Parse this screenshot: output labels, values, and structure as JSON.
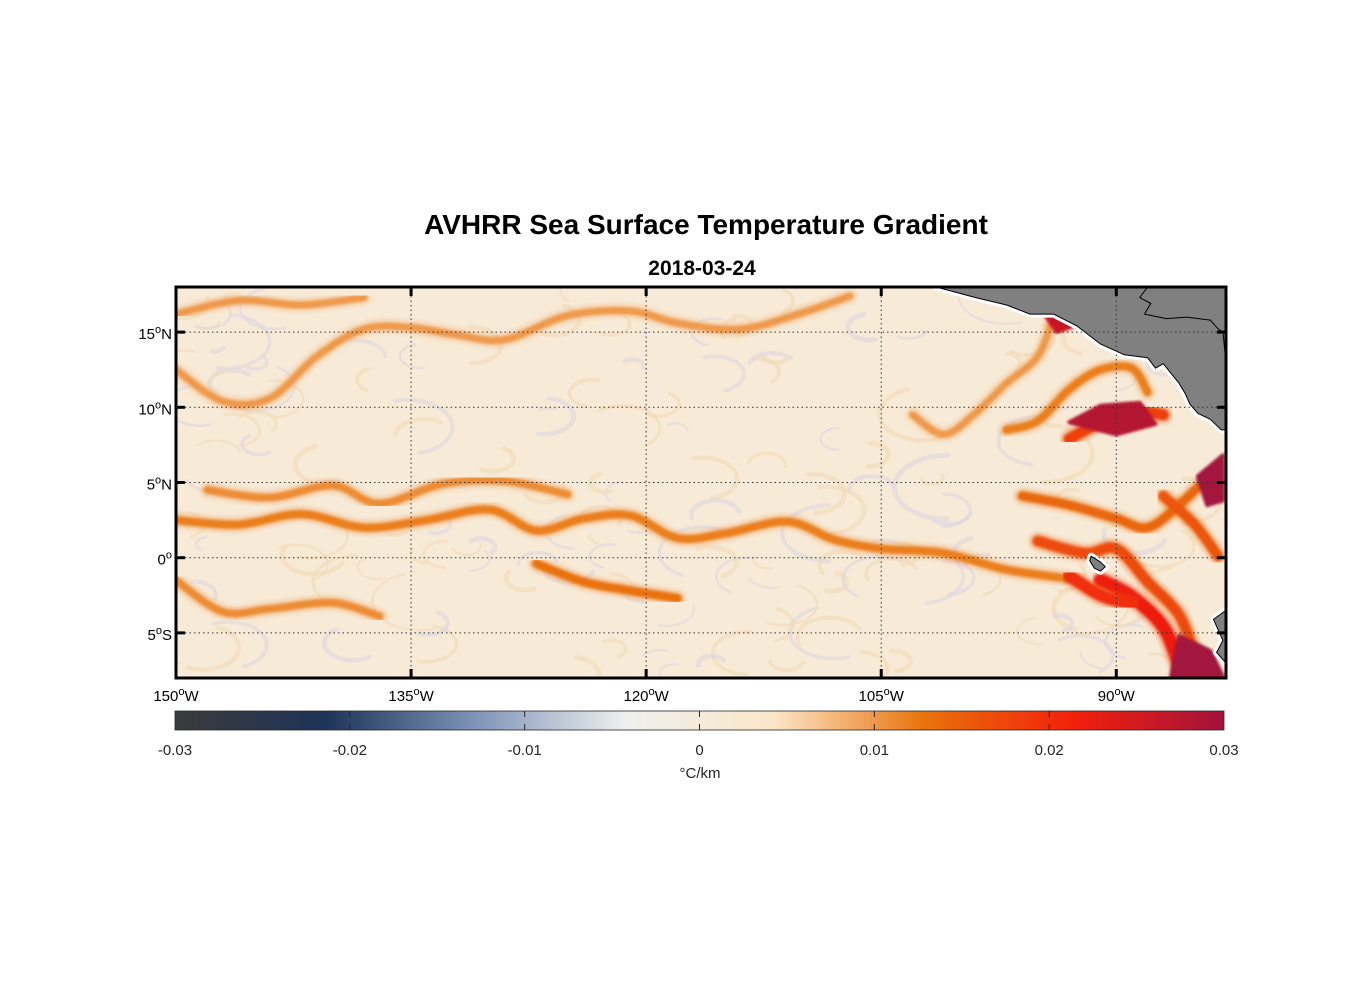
{
  "title": "AVHRR Sea Surface Temperature Gradient",
  "date": "2018-03-24",
  "map": {
    "lon_range": [
      -150,
      -83
    ],
    "lat_range": [
      -8,
      18
    ],
    "lon_ticks": [
      {
        "value": -150,
        "deg": "150",
        "hemi": "W"
      },
      {
        "value": -135,
        "deg": "135",
        "hemi": "W"
      },
      {
        "value": -120,
        "deg": "120",
        "hemi": "W"
      },
      {
        "value": -105,
        "deg": "105",
        "hemi": "W"
      },
      {
        "value": -90,
        "deg": "90",
        "hemi": "W"
      }
    ],
    "lat_ticks": [
      {
        "value": 15,
        "deg": "15",
        "hemi": "N"
      },
      {
        "value": 10,
        "deg": "10",
        "hemi": "N"
      },
      {
        "value": 5,
        "deg": "5",
        "hemi": "N"
      },
      {
        "value": 0,
        "deg": "0",
        "hemi": ""
      },
      {
        "value": -5,
        "deg": "5",
        "hemi": "S"
      }
    ],
    "degree_symbol": "o",
    "grid": "dotted",
    "land_color": "#808080",
    "ocean_background": "#f7ead7"
  },
  "colorbar": {
    "label": "°C/km",
    "range": [
      -0.03,
      0.03
    ],
    "ticks": [
      "-0.03",
      "-0.02",
      "-0.01",
      "0",
      "0.01",
      "0.02",
      "0.03"
    ],
    "colors": [
      "#3b3b3b",
      "#1e3358",
      "#7e93b8",
      "#eef0ee",
      "#fbe6c8",
      "#e9730c",
      "#f2200a",
      "#a3123c"
    ]
  },
  "gradient_fronts": [
    {
      "level": 0.012,
      "points": [
        [
          -150,
          2.5
        ],
        [
          -146,
          2.2
        ],
        [
          -142,
          2.9
        ],
        [
          -138,
          2.0
        ],
        [
          -134,
          2.5
        ],
        [
          -130,
          3.2
        ],
        [
          -127,
          1.8
        ],
        [
          -124,
          2.6
        ],
        [
          -121,
          2.8
        ],
        [
          -118,
          1.3
        ],
        [
          -115,
          1.6
        ],
        [
          -111,
          2.4
        ],
        [
          -108,
          1.2
        ],
        [
          -105,
          0.6
        ],
        [
          -101,
          0.3
        ],
        [
          -97,
          -0.8
        ],
        [
          -93,
          -1.4
        ]
      ]
    },
    {
      "level": 0.011,
      "points": [
        [
          -148,
          4.5
        ],
        [
          -144,
          4.0
        ],
        [
          -140,
          4.8
        ],
        [
          -137,
          3.6
        ],
        [
          -133,
          4.9
        ],
        [
          -129,
          5.1
        ],
        [
          -125,
          4.2
        ]
      ]
    },
    {
      "level": 0.013,
      "points": [
        [
          -127,
          -0.4
        ],
        [
          -124,
          -1.6
        ],
        [
          -121,
          -2.2
        ],
        [
          -118,
          -2.7
        ]
      ]
    },
    {
      "level": 0.011,
      "points": [
        [
          -150,
          -1.5
        ],
        [
          -147,
          -3.6
        ],
        [
          -144,
          -3.4
        ],
        [
          -140,
          -3.0
        ],
        [
          -137,
          -3.9
        ]
      ]
    },
    {
      "level": 0.01,
      "points": [
        [
          -150,
          12.5
        ],
        [
          -147,
          10.4
        ],
        [
          -144,
          10.6
        ],
        [
          -141,
          13.4
        ],
        [
          -138,
          15.2
        ],
        [
          -135,
          15.3
        ],
        [
          -132,
          14.8
        ],
        [
          -129,
          14.5
        ],
        [
          -125,
          16.1
        ],
        [
          -121,
          16.4
        ],
        [
          -118,
          15.6
        ],
        [
          -114,
          15.2
        ],
        [
          -110,
          16.3
        ],
        [
          -107,
          17.4
        ]
      ]
    },
    {
      "level": 0.01,
      "points": [
        [
          -150,
          16.2
        ],
        [
          -146,
          17.1
        ],
        [
          -142,
          16.8
        ],
        [
          -138,
          17.3
        ]
      ]
    },
    {
      "level": 0.01,
      "points": [
        [
          -103,
          9.5
        ],
        [
          -101,
          8.2
        ],
        [
          -99,
          9.6
        ],
        [
          -97,
          11.6
        ],
        [
          -95,
          13.4
        ],
        [
          -94,
          16.1
        ]
      ]
    },
    {
      "level": 0.012,
      "points": [
        [
          -97,
          8.5
        ],
        [
          -95,
          9.1
        ],
        [
          -93,
          11.2
        ],
        [
          -91,
          12.5
        ],
        [
          -89,
          12.6
        ],
        [
          -88,
          11.0
        ]
      ]
    },
    {
      "level": 0.018,
      "points": [
        [
          -93,
          7.9
        ],
        [
          -91,
          9.0
        ],
        [
          -89,
          9.8
        ],
        [
          -87,
          9.5
        ]
      ]
    },
    {
      "level": 0.014,
      "points": [
        [
          -96,
          4.1
        ],
        [
          -93,
          3.5
        ],
        [
          -90,
          2.6
        ],
        [
          -88,
          2.0
        ],
        [
          -86,
          3.5
        ],
        [
          -84,
          5.5
        ]
      ]
    },
    {
      "level": 0.017,
      "points": [
        [
          -95,
          1.1
        ],
        [
          -92,
          0.3
        ],
        [
          -90,
          0.6
        ],
        [
          -88,
          -1.6
        ],
        [
          -86,
          -3.8
        ],
        [
          -85,
          -6.5
        ]
      ]
    },
    {
      "level": 0.022,
      "points": [
        [
          -91,
          -1.5
        ],
        [
          -89,
          -2.6
        ],
        [
          -87,
          -4.6
        ],
        [
          -86,
          -7.1
        ]
      ]
    },
    {
      "level": 0.02,
      "points": [
        [
          -93,
          -1.2
        ],
        [
          -91,
          -2.5
        ],
        [
          -89,
          -3.1
        ]
      ]
    },
    {
      "level": 0.016,
      "points": [
        [
          -87,
          4.1
        ],
        [
          -85,
          2.2
        ],
        [
          -83.5,
          0.1
        ]
      ]
    }
  ],
  "high_gradient_patches": [
    {
      "level": 0.028,
      "points": [
        [
          -93,
          9.0
        ],
        [
          -90,
          8.2
        ],
        [
          -87.5,
          8.9
        ],
        [
          -88.5,
          10.3
        ],
        [
          -91,
          10.1
        ]
      ]
    },
    {
      "level": 0.03,
      "points": [
        [
          -83.2,
          6.8
        ],
        [
          -84.8,
          5.4
        ],
        [
          -84.2,
          3.5
        ],
        [
          -83.2,
          3.8
        ]
      ]
    },
    {
      "level": 0.03,
      "points": [
        [
          -86,
          -5.2
        ],
        [
          -84,
          -6.2
        ],
        [
          -83.2,
          -7.9
        ],
        [
          -86.5,
          -7.9
        ]
      ]
    },
    {
      "level": 0.026,
      "points": [
        [
          -94.5,
          16.1
        ],
        [
          -93,
          16.3
        ],
        [
          -92.5,
          15.5
        ],
        [
          -93.8,
          15.0
        ]
      ]
    }
  ],
  "land": [
    {
      "name": "central-america",
      "points": [
        [
          -101.5,
          18
        ],
        [
          -99,
          17.3
        ],
        [
          -97,
          16.8
        ],
        [
          -95.5,
          16.2
        ],
        [
          -94,
          16.2
        ],
        [
          -92.5,
          15.4
        ],
        [
          -91,
          14.2
        ],
        [
          -89.5,
          13.5
        ],
        [
          -88,
          13.3
        ],
        [
          -87.5,
          12.6
        ],
        [
          -87,
          12.9
        ],
        [
          -86,
          11.6
        ],
        [
          -85.6,
          10.9
        ],
        [
          -85.3,
          10.2
        ],
        [
          -84.8,
          9.6
        ],
        [
          -84,
          9.2
        ],
        [
          -83.3,
          8.5
        ],
        [
          -83,
          8.5
        ],
        [
          -83,
          18
        ],
        [
          -88,
          18
        ],
        [
          -88.5,
          17.3
        ],
        [
          -87.8,
          16.9
        ],
        [
          -88.2,
          16.2
        ],
        [
          -86.8,
          15.9
        ],
        [
          -85.5,
          16.0
        ],
        [
          -84,
          15.8
        ],
        [
          -83.5,
          15.2
        ],
        [
          -83.2,
          15.0
        ],
        [
          -83,
          13.0
        ],
        [
          -83,
          18
        ]
      ]
    },
    {
      "name": "south-america-coast",
      "points": [
        [
          -83,
          -3.5
        ],
        [
          -83.8,
          -4.1
        ],
        [
          -83.2,
          -5.5
        ],
        [
          -83.6,
          -6.3
        ],
        [
          -83,
          -7.0
        ]
      ]
    },
    {
      "name": "galapagos",
      "points": [
        [
          -91.6,
          0.1
        ],
        [
          -91.0,
          -0.3
        ],
        [
          -90.7,
          -0.6
        ],
        [
          -91.0,
          -0.9
        ],
        [
          -91.4,
          -0.7
        ],
        [
          -91.7,
          -0.2
        ]
      ]
    }
  ]
}
